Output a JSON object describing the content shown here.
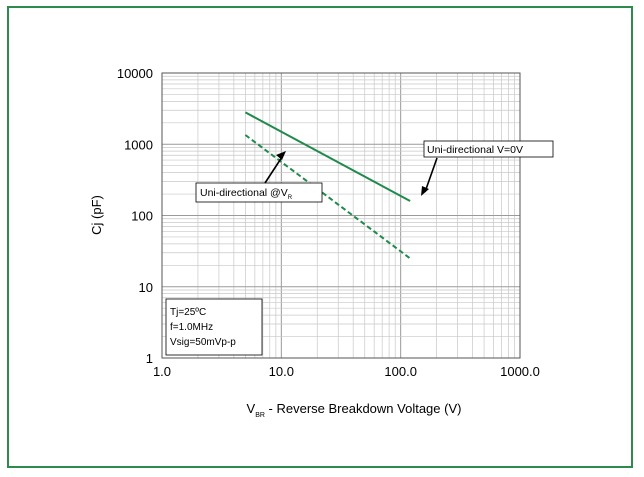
{
  "chart_data": {
    "type": "line",
    "xscale": "log",
    "yscale": "log",
    "xlim": [
      1,
      1000
    ],
    "ylim": [
      1,
      10000
    ],
    "grid": true,
    "x_ticks": [
      {
        "value": 1,
        "label": "1.0"
      },
      {
        "value": 10,
        "label": "10.0"
      },
      {
        "value": 100,
        "label": "100.0"
      },
      {
        "value": 1000,
        "label": "1000.0"
      }
    ],
    "y_ticks": [
      {
        "value": 1,
        "label": "1"
      },
      {
        "value": 10,
        "label": "10"
      },
      {
        "value": 100,
        "label": "100"
      },
      {
        "value": 1000,
        "label": "1000"
      },
      {
        "value": 10000,
        "label": "10000"
      }
    ],
    "ylabel": "Cj (pF)",
    "xlabel": {
      "main": "V",
      "sub": "BR",
      "rest": " - Reverse Breakdown Voltage (V)"
    },
    "series": [
      {
        "name": "Uni-directional V=0V",
        "style": "solid",
        "color": "#1f8a4c",
        "x": [
          5,
          120
        ],
        "y": [
          2800,
          160
        ]
      },
      {
        "name": "Uni-directional @V",
        "name_sub": "R",
        "style": "dashed",
        "color": "#1f8a4c",
        "x": [
          5,
          120
        ],
        "y": [
          1350,
          25
        ]
      }
    ],
    "annotations": [
      {
        "lines": [
          "Tj=25ºC",
          "f=1.0MHz",
          "Vsig=50mVp-p"
        ]
      }
    ]
  }
}
